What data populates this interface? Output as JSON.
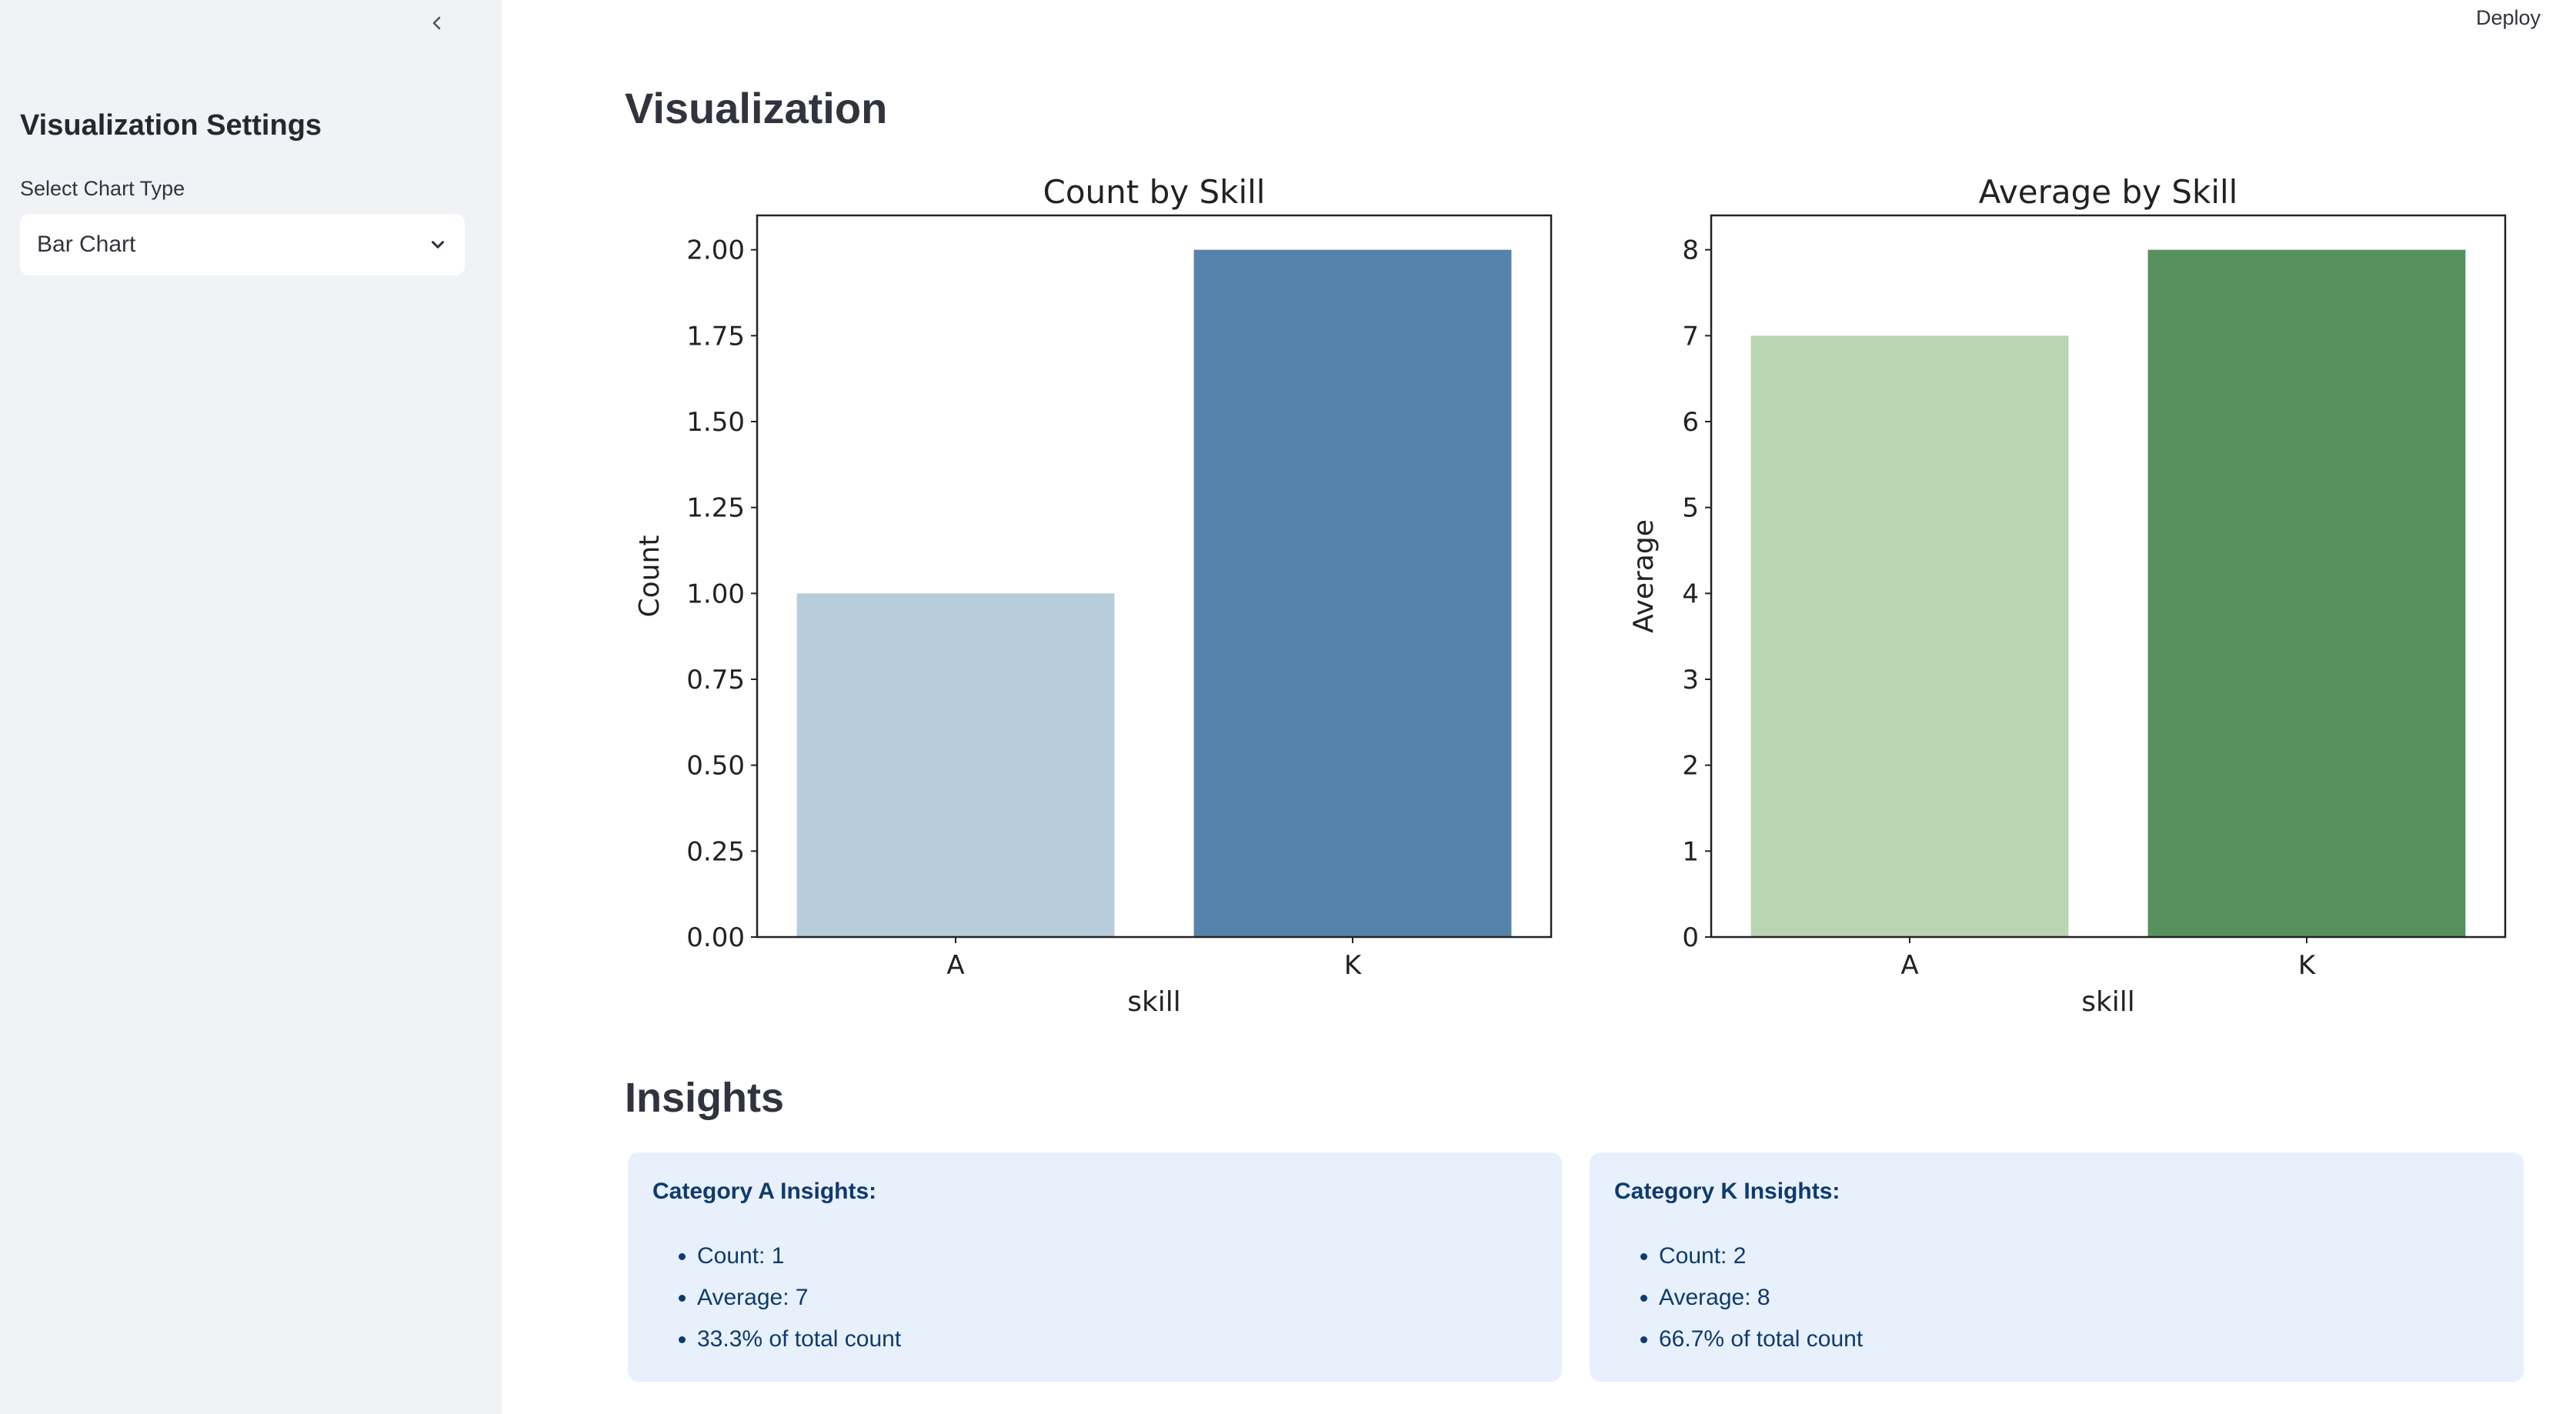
{
  "header": {
    "deploy_label": "Deploy"
  },
  "sidebar": {
    "title": "Visualization Settings",
    "chart_type_label": "Select Chart Type",
    "chart_type_value": "Bar Chart"
  },
  "main": {
    "title": "Visualization",
    "insights_title": "Insights",
    "insight_cards": [
      {
        "title": "Category A Insights:",
        "items": [
          "Count: 1",
          "Average: 7",
          "33.3% of total count"
        ]
      },
      {
        "title": "Category K Insights:",
        "items": [
          "Count: 2",
          "Average: 8",
          "66.7% of total count"
        ]
      }
    ]
  },
  "chart_data": [
    {
      "type": "bar",
      "title": "Count by Skill",
      "categories": [
        "A",
        "K"
      ],
      "values": [
        1,
        2
      ],
      "xlabel": "skill",
      "ylabel": "Count",
      "ylim": [
        0,
        2.1
      ],
      "yticks": [
        "0.00",
        "0.25",
        "0.50",
        "0.75",
        "1.00",
        "1.25",
        "1.50",
        "1.75",
        "2.00"
      ],
      "colors": [
        "#b8cddb",
        "#5683aa"
      ]
    },
    {
      "type": "bar",
      "title": "Average by Skill",
      "categories": [
        "A",
        "K"
      ],
      "values": [
        7,
        8
      ],
      "xlabel": "skill",
      "ylabel": "Average",
      "ylim": [
        0,
        8.4
      ],
      "yticks": [
        "0",
        "1",
        "2",
        "3",
        "4",
        "5",
        "6",
        "7",
        "8"
      ],
      "colors": [
        "#bad5b1",
        "#58915e"
      ]
    }
  ]
}
